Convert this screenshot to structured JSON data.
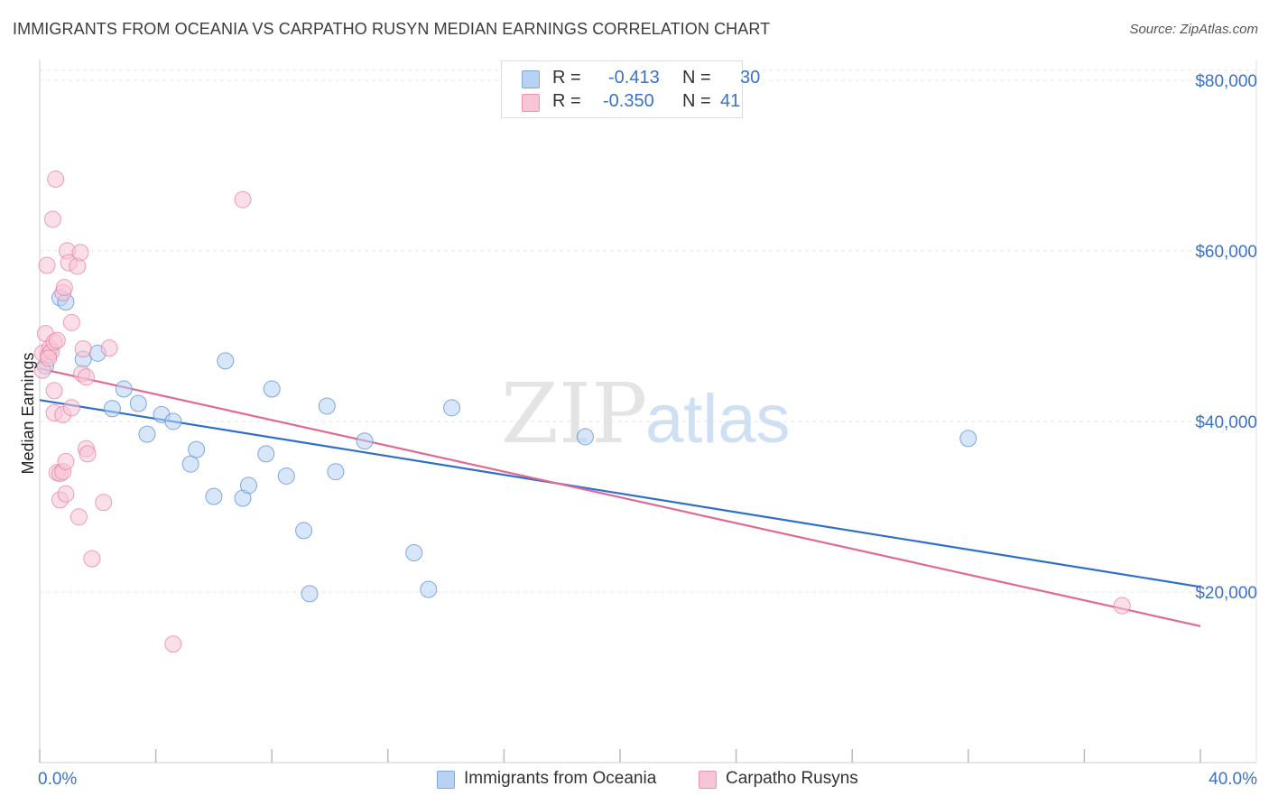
{
  "title": "IMMIGRANTS FROM OCEANIA VS CARPATHO RUSYN MEDIAN EARNINGS CORRELATION CHART",
  "source": "Source: ZipAtlas.com",
  "watermark": {
    "zip": "ZIP",
    "atlas": "atlas"
  },
  "legend": {
    "rows": [
      {
        "r_label": "R =",
        "r_value": "-0.413",
        "n_label": "N =",
        "n_value": "30",
        "color": "#a9c8f0"
      },
      {
        "r_label": "R =",
        "r_value": "-0.350",
        "n_label": "N =",
        "n_value": "41",
        "color": "#f5b8cb"
      }
    ]
  },
  "bottom_legend": [
    {
      "label": "Immigrants from Oceania",
      "color": "#a9c8f0"
    },
    {
      "label": "Carpatho Rusyns",
      "color": "#f5b8cb"
    }
  ],
  "chart_data": {
    "type": "scatter",
    "title": "IMMIGRANTS FROM OCEANIA VS CARPATHO RUSYN MEDIAN EARNINGS CORRELATION CHART",
    "xlabel": "",
    "ylabel": "Median Earnings",
    "xlim": [
      0,
      40
    ],
    "ylim": [
      0,
      82000
    ],
    "x_tick_labels": [
      "0.0%",
      "40.0%"
    ],
    "y_ticks": [
      20000,
      40000,
      60000,
      80000
    ],
    "y_tick_labels": [
      "$20,000",
      "$40,000",
      "$60,000",
      "$80,000"
    ],
    "grid": true,
    "series": [
      {
        "name": "Immigrants from Oceania",
        "color": "#5b8fd6",
        "fill": "#b7d2f2",
        "trend": {
          "x0": 0,
          "y0": 42500,
          "x1": 40,
          "y1": 20600,
          "color": "#2f6fcc"
        },
        "points": [
          [
            0.2,
            46500
          ],
          [
            0.7,
            54500
          ],
          [
            0.9,
            54000
          ],
          [
            1.5,
            47300
          ],
          [
            2.0,
            48000
          ],
          [
            2.5,
            41500
          ],
          [
            2.9,
            43800
          ],
          [
            3.4,
            42100
          ],
          [
            3.7,
            38500
          ],
          [
            4.2,
            40800
          ],
          [
            4.6,
            40000
          ],
          [
            5.2,
            35000
          ],
          [
            5.4,
            36700
          ],
          [
            6.0,
            31200
          ],
          [
            6.4,
            47100
          ],
          [
            7.0,
            31000
          ],
          [
            7.2,
            32500
          ],
          [
            7.8,
            36200
          ],
          [
            8.0,
            43800
          ],
          [
            8.5,
            33600
          ],
          [
            9.1,
            27200
          ],
          [
            9.3,
            19800
          ],
          [
            9.9,
            41800
          ],
          [
            10.2,
            34100
          ],
          [
            11.2,
            37700
          ],
          [
            12.9,
            24600
          ],
          [
            13.4,
            20300
          ],
          [
            14.2,
            41600
          ],
          [
            18.8,
            38200
          ],
          [
            32.0,
            38000
          ]
        ]
      },
      {
        "name": "Carpatho Rusyns",
        "color": "#e77fa1",
        "fill": "#f8c5d5",
        "trend": {
          "x0": 0,
          "y0": 46200,
          "x1": 40,
          "y1": 16000,
          "color": "#e06a93"
        },
        "points": [
          [
            0.1,
            48000
          ],
          [
            0.1,
            46000
          ],
          [
            0.2,
            50300
          ],
          [
            0.25,
            58300
          ],
          [
            0.3,
            47800
          ],
          [
            0.35,
            48600
          ],
          [
            0.4,
            48200
          ],
          [
            0.45,
            63700
          ],
          [
            0.5,
            49300
          ],
          [
            0.5,
            43600
          ],
          [
            0.5,
            41000
          ],
          [
            0.55,
            68400
          ],
          [
            0.6,
            49500
          ],
          [
            0.6,
            34000
          ],
          [
            0.7,
            33900
          ],
          [
            0.7,
            30800
          ],
          [
            0.8,
            55100
          ],
          [
            0.8,
            34100
          ],
          [
            0.8,
            40800
          ],
          [
            0.85,
            55700
          ],
          [
            0.9,
            31500
          ],
          [
            0.9,
            35300
          ],
          [
            0.95,
            60000
          ],
          [
            1.0,
            58600
          ],
          [
            1.1,
            41600
          ],
          [
            1.1,
            51600
          ],
          [
            1.3,
            58200
          ],
          [
            1.35,
            28800
          ],
          [
            1.4,
            59800
          ],
          [
            1.45,
            45600
          ],
          [
            1.5,
            48500
          ],
          [
            1.6,
            45200
          ],
          [
            1.6,
            36800
          ],
          [
            1.65,
            36200
          ],
          [
            1.8,
            23900
          ],
          [
            2.2,
            30500
          ],
          [
            2.4,
            48600
          ],
          [
            4.6,
            13900
          ],
          [
            7.0,
            66000
          ],
          [
            37.3,
            18400
          ],
          [
            0.3,
            47400
          ]
        ]
      }
    ]
  }
}
